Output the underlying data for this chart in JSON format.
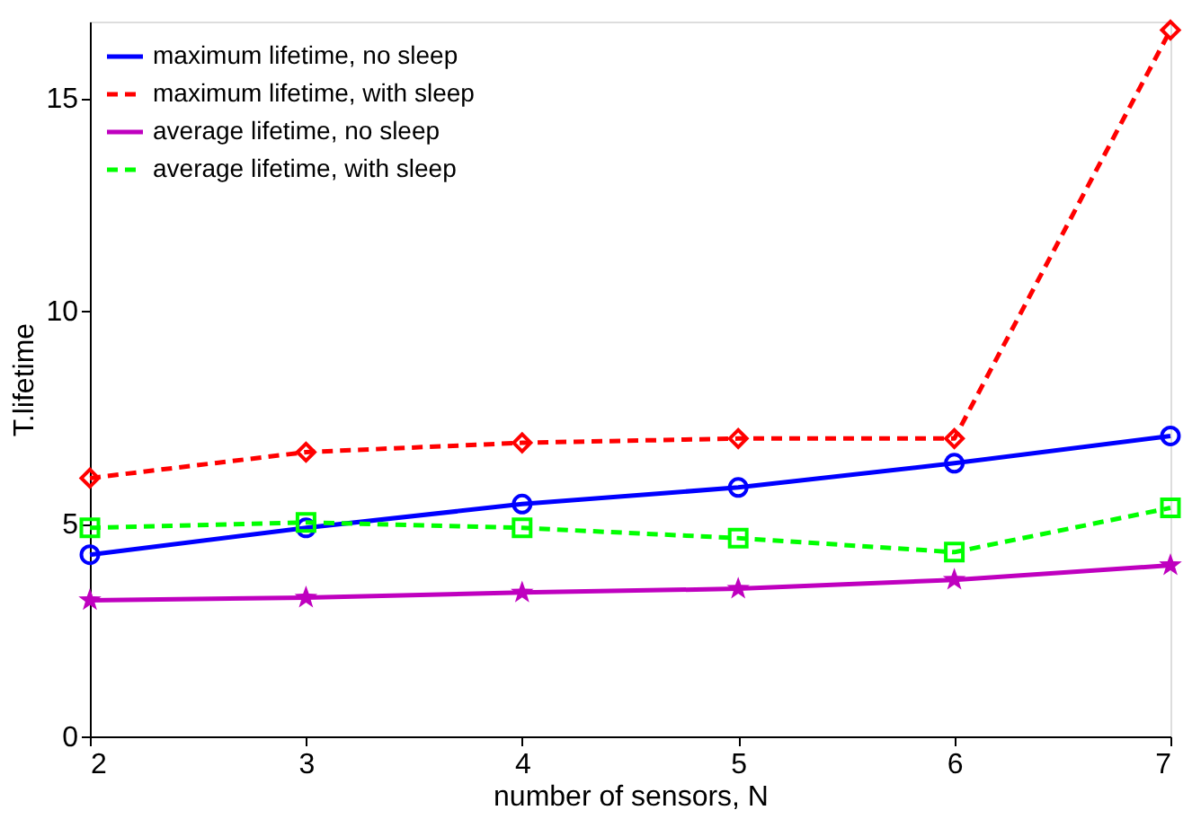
{
  "chart_data": {
    "type": "line",
    "xlabel": "number of sensors, N",
    "ylabel": "T.lifetime",
    "x": [
      2,
      3,
      4,
      5,
      6,
      7
    ],
    "xlim": [
      2,
      7
    ],
    "xticks": [
      2,
      3,
      4,
      5,
      6,
      7
    ],
    "ylim": [
      0,
      16.8
    ],
    "yticks": [
      0,
      5,
      10,
      15
    ],
    "grid": false,
    "legend": "top left",
    "series": [
      {
        "name": "maximum lifetime, no sleep",
        "color": "#0000ff",
        "marker": "circle",
        "line_style": "solid",
        "values": [
          4.27,
          4.9,
          5.46,
          5.85,
          6.42,
          7.06
        ]
      },
      {
        "name": "maximum lifetime, with sleep",
        "color": "#ff0000",
        "marker": "diamond",
        "line_style": "dashed",
        "values": [
          6.07,
          6.68,
          6.9,
          7.0,
          7.0,
          16.6
        ]
      },
      {
        "name": "average lifetime, no sleep",
        "color": "#bf00bf",
        "marker": "star",
        "line_style": "solid",
        "values": [
          3.2,
          3.26,
          3.38,
          3.47,
          3.68,
          4.02
        ]
      },
      {
        "name": "average lifetime, with sleep",
        "color": "#00ff00",
        "marker": "square",
        "line_style": "dashed",
        "values": [
          4.9,
          5.03,
          4.9,
          4.66,
          4.33,
          5.37
        ]
      }
    ]
  }
}
